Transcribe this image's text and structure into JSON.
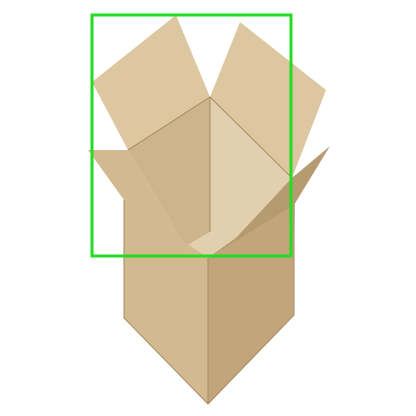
{
  "image": {
    "subject": "cardboard-box",
    "background_color": "#ffffff"
  },
  "colors": {
    "cardboard_light": "#ddc7a1",
    "cardboard_mid": "#d3b98f",
    "cardboard_dark": "#c2a57b",
    "cardboard_shadow": "#b69a70",
    "inside_back": "#cdb48b",
    "inside_floor": "#e1cfad",
    "edge_line": "#a68a61",
    "highlight_box": "#22dd22"
  },
  "annotations": [
    {
      "type": "bounding-box",
      "target": "open-box-top",
      "color": "#22dd22"
    }
  ]
}
